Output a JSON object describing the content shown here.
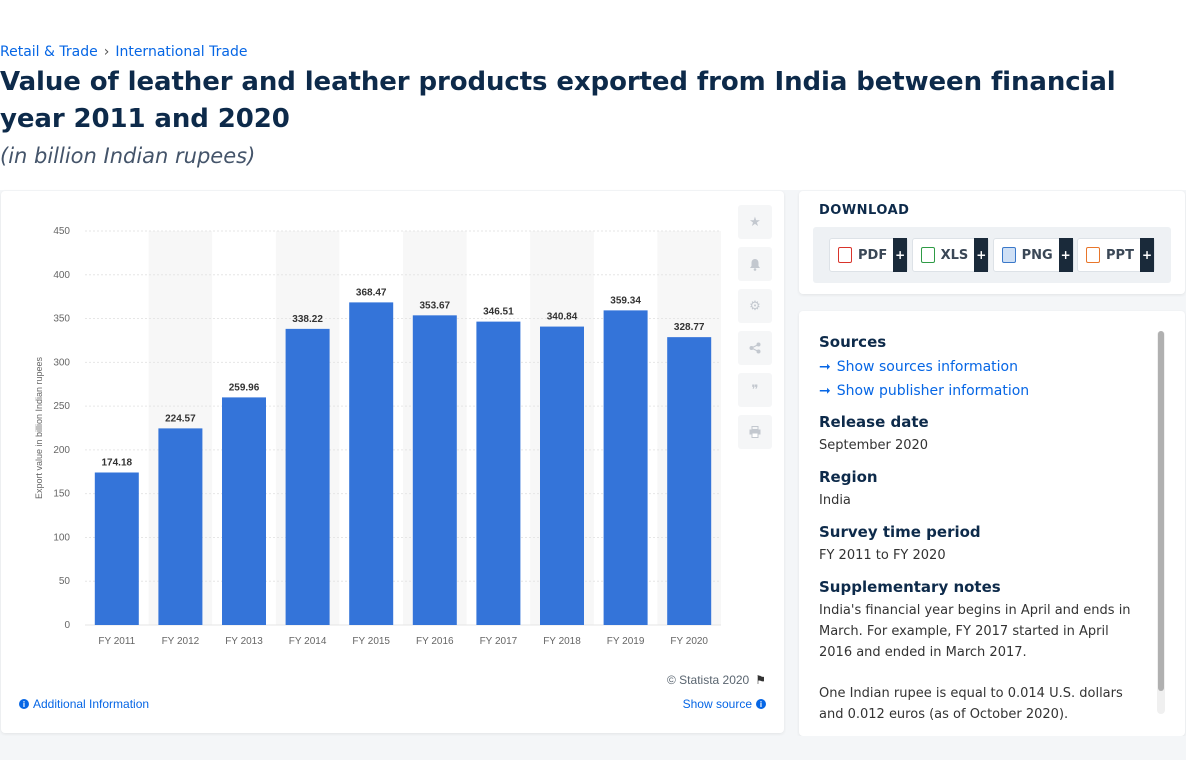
{
  "breadcrumb": {
    "first": "Retail & Trade",
    "separator": "›",
    "second": "International Trade"
  },
  "page": {
    "title": "Value of leather and leather products exported from India between financial year 2011 and 2020",
    "subtitle": "(in billion Indian rupees)"
  },
  "chart_data": {
    "type": "bar",
    "categories": [
      "FY 2011",
      "FY 2012",
      "FY 2013",
      "FY 2014",
      "FY 2015",
      "FY 2016",
      "FY 2017",
      "FY 2018",
      "FY 2019",
      "FY 2020"
    ],
    "values": [
      174.18,
      224.57,
      259.96,
      338.22,
      368.47,
      353.67,
      346.51,
      340.84,
      359.34,
      328.77
    ],
    "value_labels": [
      "174.18",
      "224.57",
      "259.96",
      "338.22",
      "368.47",
      "353.67",
      "346.51",
      "340.84",
      "359.34",
      "328.77"
    ],
    "ylabel": "Export value in billion Indian rupees",
    "ylim": [
      0,
      450
    ],
    "yticks": [
      0,
      50,
      100,
      150,
      200,
      250,
      300,
      350,
      400,
      450
    ],
    "grid": true,
    "bar_color": "#3474d9"
  },
  "toolbar": {
    "icons": [
      "star-icon",
      "bell-icon",
      "gear-icon",
      "share-icon",
      "quote-icon",
      "print-icon"
    ]
  },
  "footer": {
    "copyright": "© Statista 2020",
    "additional_info": "Additional Information",
    "show_source": "Show source"
  },
  "download": {
    "title": "DOWNLOAD",
    "buttons": [
      {
        "label": "PDF",
        "color": "#d9342b"
      },
      {
        "label": "XLS",
        "color": "#2e9b45"
      },
      {
        "label": "PNG",
        "color": "#3a78c9"
      },
      {
        "label": "PPT",
        "color": "#e8762b"
      }
    ],
    "plus": "+"
  },
  "info": {
    "sources_heading": "Sources",
    "sources_link": "Show sources information",
    "publisher_link": "Show publisher information",
    "release_heading": "Release date",
    "release_value": "September 2020",
    "region_heading": "Region",
    "region_value": "India",
    "survey_heading": "Survey time period",
    "survey_value": "FY 2011 to FY 2020",
    "notes_heading": "Supplementary notes",
    "notes_p1": "India's financial year begins in April and ends in March. For example, FY 2017 started in April 2016 and ended in March 2017.",
    "notes_p2": "One Indian rupee is equal to 0.014 U.S. dollars and 0.012 euros (as of October 2020)."
  }
}
